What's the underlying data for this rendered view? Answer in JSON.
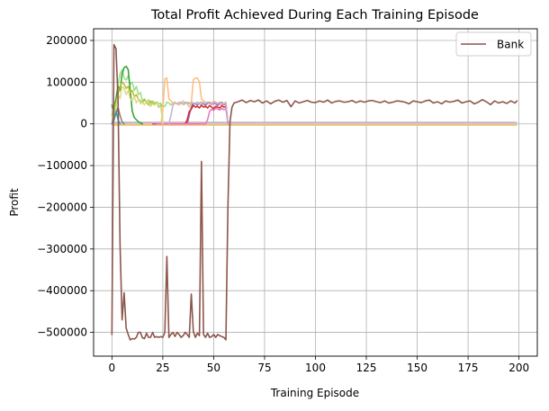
{
  "chart_data": {
    "type": "line",
    "title": "Total Profit Achieved During Each Training Episode",
    "xlabel": "Training Episode",
    "ylabel": "Profit",
    "xlim": [
      -9,
      209
    ],
    "ylim": [
      -557000,
      228000
    ],
    "xticks": [
      0,
      25,
      50,
      75,
      100,
      125,
      150,
      175,
      200
    ],
    "yticks": [
      -500000,
      -400000,
      -300000,
      -200000,
      -100000,
      0,
      100000,
      200000
    ],
    "ytick_labels": [
      "−500000",
      "−400000",
      "−300000",
      "−200000",
      "−100000",
      "0",
      "100000",
      "200000"
    ],
    "grid": true,
    "legend_position": "top-right",
    "legend_entries": [
      "Bank"
    ],
    "flat_series_colors": [
      "#aec7e8",
      "#ff9896",
      "#c5b0d5",
      "#c49c94",
      "#f7b6d2",
      "#c7c7c7",
      "#9edae5",
      "#dbdb8d",
      "#98df8a",
      "#ffbb78"
    ],
    "series": [
      {
        "name": "Bank",
        "color": "#8c564b",
        "x": [
          0,
          1,
          2,
          3,
          4,
          5,
          6,
          7,
          8,
          9,
          10,
          11,
          12,
          13,
          14,
          15,
          16,
          17,
          18,
          19,
          20,
          21,
          22,
          23,
          24,
          25,
          26,
          27,
          28,
          29,
          30,
          31,
          32,
          33,
          34,
          35,
          36,
          37,
          38,
          39,
          40,
          41,
          42,
          43,
          44,
          45,
          46,
          47,
          48,
          49,
          50,
          51,
          52,
          53,
          54,
          55,
          56,
          57,
          58,
          59,
          60,
          62,
          64,
          66,
          68,
          70,
          72,
          74,
          76,
          78,
          80,
          82,
          84,
          86,
          88,
          90,
          92,
          94,
          96,
          98,
          100,
          102,
          104,
          106,
          108,
          110,
          112,
          114,
          116,
          118,
          120,
          122,
          124,
          126,
          128,
          130,
          132,
          134,
          136,
          138,
          140,
          142,
          144,
          146,
          148,
          150,
          152,
          154,
          156,
          158,
          160,
          162,
          164,
          166,
          168,
          170,
          172,
          174,
          176,
          178,
          180,
          182,
          184,
          186,
          188,
          190,
          192,
          194,
          196,
          198,
          199
        ],
        "y": [
          -505000,
          190000,
          180000,
          60000,
          -290000,
          -470000,
          -405000,
          -490000,
          -505000,
          -518000,
          -515000,
          -516000,
          -512000,
          -500000,
          -500000,
          -513000,
          -515000,
          -502000,
          -512000,
          -512000,
          -500000,
          -512000,
          -510000,
          -512000,
          -510000,
          -512000,
          -500000,
          -318000,
          -512000,
          -505000,
          -500000,
          -510000,
          -500000,
          -505000,
          -512000,
          -508000,
          -500000,
          -505000,
          -512000,
          -408000,
          -498000,
          -512000,
          -502000,
          -508000,
          -90000,
          -505000,
          -512000,
          -502000,
          -512000,
          -510000,
          -505000,
          -512000,
          -505000,
          -508000,
          -510000,
          -512000,
          -518000,
          -200000,
          5000,
          40000,
          50000,
          53000,
          57000,
          51000,
          56000,
          53000,
          57000,
          50000,
          55000,
          48000,
          54000,
          57000,
          52000,
          56000,
          41000,
          55000,
          50000,
          53000,
          56000,
          52000,
          51000,
          55000,
          52000,
          57000,
          50000,
          54000,
          55000,
          52000,
          53000,
          56000,
          51000,
          55000,
          52000,
          55000,
          56000,
          53000,
          51000,
          55000,
          50000,
          52000,
          55000,
          54000,
          52000,
          48000,
          55000,
          53000,
          51000,
          55000,
          57000,
          50000,
          53000,
          48000,
          55000,
          52000,
          54000,
          57000,
          50000,
          53000,
          55000,
          48000,
          52000,
          58000,
          53000,
          46000,
          55000,
          50000,
          53000,
          49000,
          55000,
          50000,
          55000
        ]
      },
      {
        "color": "#98df8a",
        "x": [
          0,
          1,
          2,
          3,
          4,
          5,
          6,
          7,
          8,
          9,
          10,
          11,
          12,
          13,
          14,
          15,
          16,
          17,
          18,
          19,
          20,
          21,
          22,
          23,
          24,
          25,
          26,
          27,
          28,
          29,
          30,
          31,
          32,
          33,
          34,
          35,
          36,
          37,
          38,
          39,
          40,
          41,
          42,
          43,
          44,
          45,
          46,
          47,
          48,
          49,
          50,
          51,
          52,
          53,
          54,
          55,
          56,
          57
        ],
        "y": [
          40000,
          45000,
          60000,
          95000,
          120000,
          130000,
          110000,
          105000,
          115000,
          95000,
          100000,
          80000,
          90000,
          70000,
          75000,
          55000,
          60000,
          50000,
          58000,
          45000,
          55000,
          50000,
          52000,
          48000,
          50000,
          40000,
          42000,
          52000,
          50000,
          45000,
          50000,
          52000,
          48000,
          50000,
          52000,
          46000,
          48000,
          52000,
          50000,
          46000,
          48000,
          50000,
          52000,
          48000,
          46000,
          50000,
          52000,
          48000,
          50000,
          46000,
          48000,
          52000,
          50000,
          48000,
          46000,
          50000,
          52000,
          0
        ]
      },
      {
        "color": "#2ca02c",
        "x": [
          0,
          1,
          2,
          3,
          4,
          5,
          6,
          7,
          8,
          9,
          10,
          11,
          12,
          13,
          14,
          15
        ],
        "y": [
          45000,
          30000,
          60000,
          90000,
          80000,
          120000,
          135000,
          138000,
          130000,
          80000,
          30000,
          15000,
          10000,
          5000,
          2000,
          0
        ]
      },
      {
        "color": "#bcbd22",
        "x": [
          0,
          1,
          2,
          3,
          4,
          5,
          6,
          7,
          8,
          9,
          10,
          11,
          12,
          13,
          14,
          15,
          16,
          17,
          18,
          19,
          20,
          21,
          22,
          23,
          24,
          25
        ],
        "y": [
          20000,
          35000,
          50000,
          70000,
          90000,
          100000,
          95000,
          85000,
          90000,
          75000,
          80000,
          65000,
          70000,
          60000,
          55000,
          50000,
          58000,
          52000,
          45000,
          55000,
          50000,
          48000,
          52000,
          40000,
          45000,
          0
        ]
      },
      {
        "color": "#ffbb78",
        "x": [
          18,
          19,
          20,
          21,
          22,
          23,
          24,
          25,
          26,
          27,
          28,
          29,
          30,
          31,
          32,
          33,
          34,
          35,
          36,
          37,
          38,
          39,
          40,
          41,
          42,
          43,
          44,
          45,
          46,
          47,
          48,
          49,
          50,
          51,
          52,
          53,
          54,
          55,
          56,
          57
        ],
        "y": [
          0,
          0,
          0,
          0,
          0,
          0,
          0,
          30000,
          108000,
          110000,
          60000,
          55000,
          50000,
          52000,
          48000,
          45000,
          50000,
          55000,
          50000,
          48000,
          40000,
          50000,
          105000,
          110000,
          110000,
          100000,
          60000,
          55000,
          52000,
          50000,
          48000,
          50000,
          55000,
          52000,
          50000,
          48000,
          45000,
          50000,
          52000,
          0
        ]
      },
      {
        "color": "#9467bd",
        "x": [
          20,
          21,
          22,
          23,
          24,
          25,
          26,
          27,
          28,
          29,
          30,
          31,
          32,
          33,
          34,
          35,
          36,
          37,
          38,
          39,
          40,
          41,
          42,
          43,
          44,
          45,
          46,
          47,
          48,
          49,
          50,
          51,
          52,
          53,
          54,
          55,
          56,
          57
        ],
        "y": [
          0,
          0,
          0,
          0,
          0,
          0,
          0,
          0,
          0,
          0,
          0,
          0,
          0,
          0,
          0,
          0,
          0,
          0,
          20000,
          40000,
          50000,
          48000,
          45000,
          50000,
          52000,
          48000,
          44000,
          50000,
          52000,
          46000,
          50000,
          48000,
          44000,
          50000,
          52000,
          46000,
          48000,
          0
        ]
      },
      {
        "color": "#d62728",
        "x": [
          28,
          29,
          30,
          31,
          32,
          33,
          34,
          35,
          36,
          37,
          38,
          39,
          40,
          41,
          42,
          43,
          44,
          45,
          46,
          47,
          48,
          49,
          50,
          51,
          52,
          53,
          54,
          55,
          56,
          57
        ],
        "y": [
          0,
          0,
          0,
          0,
          0,
          0,
          0,
          0,
          0,
          10000,
          30000,
          35000,
          45000,
          40000,
          42000,
          38000,
          45000,
          40000,
          42000,
          38000,
          44000,
          40000,
          36000,
          42000,
          40000,
          38000,
          44000,
          40000,
          42000,
          0
        ]
      },
      {
        "color": "#e377c2",
        "x": [
          22,
          23,
          24,
          25,
          26,
          27,
          28,
          29,
          30,
          31,
          32,
          33,
          34,
          35,
          36,
          37,
          38,
          39,
          40,
          41,
          42,
          43,
          44,
          45,
          46,
          47,
          48,
          49,
          50,
          51,
          52,
          53,
          54,
          55,
          56,
          57
        ],
        "y": [
          0,
          0,
          0,
          0,
          0,
          0,
          0,
          0,
          0,
          0,
          0,
          0,
          0,
          0,
          0,
          0,
          0,
          0,
          0,
          0,
          0,
          0,
          0,
          0,
          0,
          10000,
          30000,
          35000,
          32000,
          38000,
          35000,
          33000,
          37000,
          34000,
          36000,
          0
        ]
      },
      {
        "color": "#c5b0d5",
        "x": [
          28,
          29,
          30,
          31,
          32,
          33,
          34,
          35,
          36,
          37,
          38,
          39,
          40,
          41,
          42,
          43,
          44,
          45,
          46,
          47,
          48,
          49,
          50,
          51,
          52,
          53,
          54,
          55,
          56,
          57
        ],
        "y": [
          0,
          20000,
          45000,
          50000,
          48000,
          52000,
          50000,
          48000,
          52000,
          50000,
          48000,
          52000,
          50000,
          49000,
          51000,
          48000,
          52000,
          50000,
          48000,
          52000,
          50000,
          46000,
          52000,
          50000,
          48000,
          52000,
          50000,
          48000,
          50000,
          0
        ]
      },
      {
        "color": "#dbdb8d",
        "x": [
          1,
          2,
          3,
          4,
          5,
          6,
          7,
          8,
          9,
          10,
          11,
          12,
          13,
          14,
          15,
          16,
          17,
          18,
          19,
          20,
          21,
          22,
          23,
          24,
          25
        ],
        "y": [
          0,
          40000,
          70000,
          60000,
          90000,
          85000,
          70000,
          80000,
          60000,
          55000,
          65000,
          50000,
          60000,
          48000,
          52000,
          45000,
          55000,
          50000,
          42000,
          48000,
          45000,
          50000,
          44000,
          40000,
          0
        ]
      },
      {
        "color": "#17becf",
        "x": [
          0,
          1,
          2,
          3,
          4
        ],
        "y": [
          0,
          20000,
          30000,
          10000,
          0
        ]
      },
      {
        "color": "#7f7f7f",
        "x": [
          0,
          1,
          2,
          3,
          4,
          5,
          6
        ],
        "y": [
          0,
          10000,
          25000,
          40000,
          20000,
          5000,
          0
        ]
      }
    ]
  }
}
